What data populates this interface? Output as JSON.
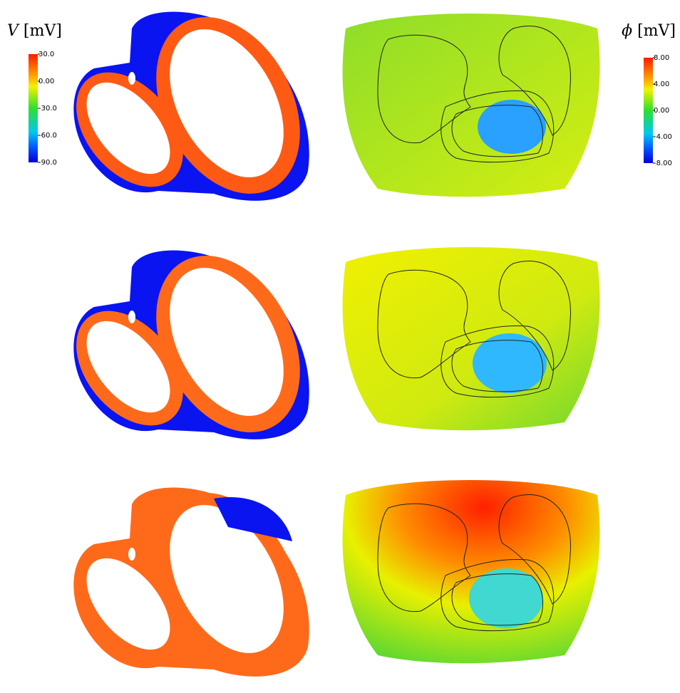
{
  "colorbars": [
    {
      "symbol": "V",
      "unit": "[mV]",
      "range": [
        -90,
        30
      ],
      "ticks": [
        {
          "value": 30,
          "label": "30.0"
        },
        {
          "value": 0,
          "label": "0.00"
        },
        {
          "value": -30,
          "label": "-30.0"
        },
        {
          "value": -60,
          "label": "-60.0"
        },
        {
          "value": -90,
          "label": "-90.0"
        }
      ]
    },
    {
      "symbol": "ϕ",
      "unit": "[mV]",
      "range": [
        -8,
        8
      ],
      "ticks": [
        {
          "value": 8,
          "label": "8.00"
        },
        {
          "value": 4,
          "label": "4.00"
        },
        {
          "value": 0,
          "label": "0.00"
        },
        {
          "value": -4,
          "label": "-4.00"
        },
        {
          "value": -8,
          "label": "-8.00"
        }
      ]
    }
  ]
}
